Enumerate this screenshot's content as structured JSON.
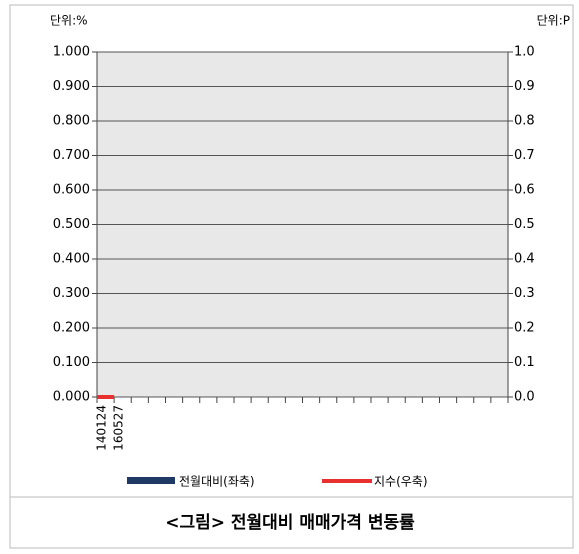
{
  "chart_data": {
    "type": "bar-line",
    "y_unit": "단위:%",
    "y2_unit": "단위:P",
    "categories": [
      "140124",
      "160527",
      null,
      null,
      null,
      null,
      null,
      null,
      null,
      null,
      null,
      null,
      null,
      null,
      null,
      null,
      null,
      null,
      null,
      null,
      null,
      null,
      null,
      null
    ],
    "series": [
      {
        "name": "전월대비(좌축)",
        "type": "bar",
        "color": "#1f3864",
        "values": [
          0,
          0,
          null,
          null,
          null,
          null,
          null,
          null,
          null,
          null,
          null,
          null,
          null,
          null,
          null,
          null,
          null,
          null,
          null,
          null,
          null,
          null,
          null,
          null
        ]
      },
      {
        "name": "지수(우축)",
        "type": "line",
        "axis": "y2",
        "color": "#e8312f",
        "values": [
          0,
          0,
          null,
          null,
          null,
          null,
          null,
          null,
          null,
          null,
          null,
          null,
          null,
          null,
          null,
          null,
          null,
          null,
          null,
          null,
          null,
          null,
          null,
          null
        ]
      }
    ],
    "ylim": [
      0,
      1
    ],
    "yticks": [
      {
        "value": 0,
        "label": "0.000"
      },
      {
        "value": 0.1,
        "label": "0.100"
      },
      {
        "value": 0.2,
        "label": "0.200"
      },
      {
        "value": 0.3,
        "label": "0.300"
      },
      {
        "value": 0.4,
        "label": "0.400"
      },
      {
        "value": 0.5,
        "label": "0.500"
      },
      {
        "value": 0.6,
        "label": "0.600"
      },
      {
        "value": 0.7,
        "label": "0.700"
      },
      {
        "value": 0.8,
        "label": "0.800"
      },
      {
        "value": 0.9,
        "label": "0.900"
      },
      {
        "value": 1,
        "label": "1.000"
      }
    ],
    "y2lim": [
      0,
      1
    ],
    "y2ticks": [
      {
        "value": 0,
        "label": "0.0"
      },
      {
        "value": 0.1,
        "label": "0.1"
      },
      {
        "value": 0.2,
        "label": "0.2"
      },
      {
        "value": 0.3,
        "label": "0.3"
      },
      {
        "value": 0.4,
        "label": "0.4"
      },
      {
        "value": 0.5,
        "label": "0.5"
      },
      {
        "value": 0.6,
        "label": "0.6"
      },
      {
        "value": 0.7,
        "label": "0.7"
      },
      {
        "value": 0.8,
        "label": "0.8"
      },
      {
        "value": 0.9,
        "label": "0.9"
      },
      {
        "value": 1,
        "label": "1.0"
      }
    ],
    "grid": true
  },
  "caption": "<그림> 전월대비 매매가격 변동률"
}
